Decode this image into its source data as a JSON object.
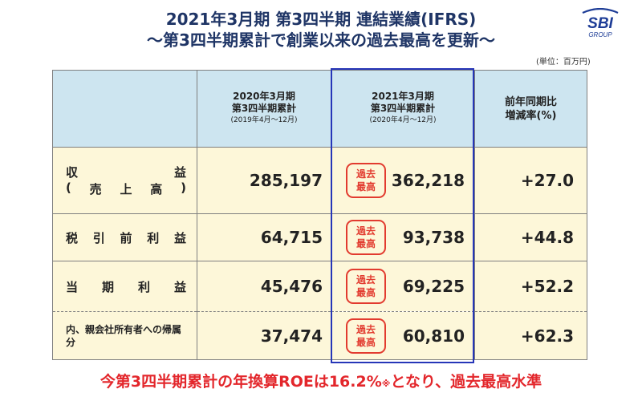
{
  "header": {
    "title": "2021年3月期 第3四半期 連結業績(IFRS)",
    "subtitle": "～第3四半期累計で創業以来の過去最高を更新～",
    "unit": "(単位：百万円)"
  },
  "logo": {
    "text": "SBI",
    "sub": "GROUP",
    "color": "#1d3c96"
  },
  "table": {
    "columns": [
      {
        "line1": "2020年3月期",
        "line2": "第3四半期累計",
        "period": "(2019年4月～12月)"
      },
      {
        "line1": "2021年3月期",
        "line2": "第3四半期累計",
        "period": "(2020年4月～12月)"
      },
      {
        "line1": "前年同期比",
        "line2": "増減率(%)"
      }
    ],
    "badge": {
      "line1": "過去",
      "line2": "最高"
    },
    "rows": [
      {
        "label_chars": [
          "収",
          "益"
        ],
        "label_sub_chars": [
          "(",
          "売",
          "上",
          "高",
          ")"
        ],
        "prev": "285,197",
        "curr": "362,218",
        "rate": "+27.0"
      },
      {
        "label_chars": [
          "税",
          "引",
          "前",
          "利",
          "益"
        ],
        "prev": "64,715",
        "curr": "93,738",
        "rate": "+44.8"
      },
      {
        "label_chars": [
          "当",
          "期",
          "利",
          "益"
        ],
        "prev": "45,476",
        "curr": "69,225",
        "rate": "+52.2"
      },
      {
        "label": "内、親会社所有者への帰属分",
        "prev": "37,474",
        "curr": "60,810",
        "rate": "+62.3"
      }
    ]
  },
  "footer": {
    "text_before": "今第3四半期累計の年換算ROEは16.2%",
    "mark": "※",
    "text_after": "となり、過去最高水準"
  },
  "colors": {
    "header_bg": "#cde5f0",
    "body_bg": "#fdf7d9",
    "highlight_border": "#2636b8",
    "badge_red": "#e23b2f",
    "title_navy": "#1f3566"
  }
}
